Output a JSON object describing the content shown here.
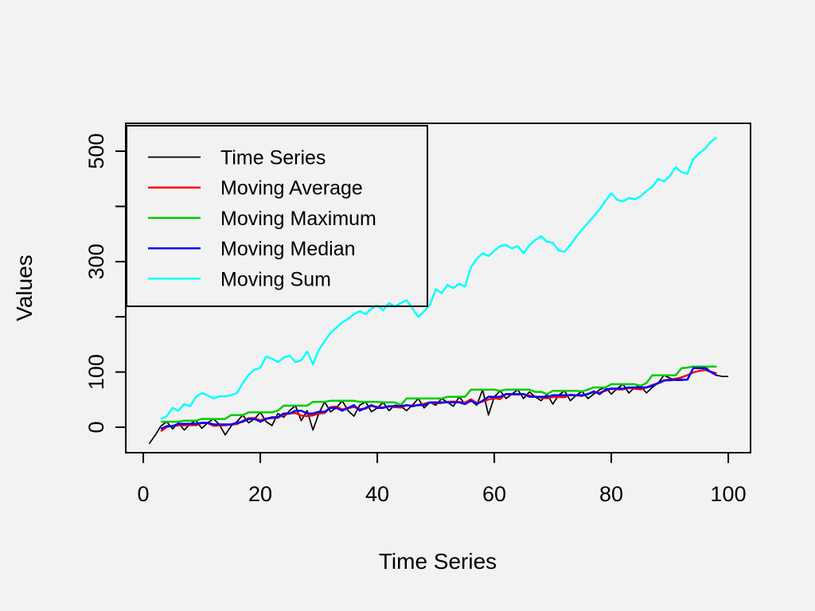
{
  "figure": {
    "background": "#F2F2F2",
    "axis_color": "#000000",
    "xlabel": "Time Series",
    "ylabel": "Values",
    "x_ticks": [
      0,
      20,
      40,
      60,
      80,
      100
    ],
    "x_tick_labels": [
      "0",
      "20",
      "40",
      "60",
      "80",
      "100"
    ],
    "y_ticks": [
      0,
      100,
      200,
      300,
      400,
      500
    ],
    "y_tick_labels": [
      "0",
      "100",
      "",
      "300",
      "",
      "500"
    ],
    "xlim": [
      -3.0,
      103.8
    ],
    "ylim": [
      -46.1,
      550.5
    ],
    "grid": false,
    "legend": {
      "position": "top-left",
      "entries": [
        {
          "label": "Time Series",
          "color": "#000000"
        },
        {
          "label": "Moving Average",
          "color": "#FF0000"
        },
        {
          "label": "Moving Maximum",
          "color": "#00CC00"
        },
        {
          "label": "Moving Median",
          "color": "#0000FF"
        },
        {
          "label": "Moving Sum",
          "color": "#00FFFF"
        }
      ]
    }
  },
  "chart_data": {
    "type": "line",
    "xlabel": "Time Series",
    "ylabel": "Values",
    "xlim": [
      -3.0,
      103.8
    ],
    "ylim": [
      -46.1,
      550.5
    ],
    "x_axis_ticks": [
      0,
      20,
      40,
      60,
      80,
      100
    ],
    "y_axis_ticks_labeled": [
      0,
      100,
      300,
      500
    ],
    "legend_position": "top-left",
    "series": [
      {
        "name": "Time Series",
        "color": "#000000",
        "x_start": 1,
        "values": [
          -30,
          -15,
          2,
          10,
          -3,
          8,
          -5,
          6,
          12,
          -2,
          8,
          15,
          5,
          -14,
          2,
          10,
          22,
          8,
          15,
          27,
          10,
          3,
          25,
          18,
          30,
          39,
          12,
          30,
          -5,
          25,
          46,
          28,
          35,
          48,
          30,
          20,
          40,
          46,
          28,
          35,
          45,
          30,
          40,
          38,
          30,
          40,
          52,
          35,
          45,
          40,
          52,
          45,
          38,
          55,
          42,
          48,
          40,
          68,
          22,
          55,
          66,
          52,
          60,
          68,
          52,
          64,
          55,
          48,
          60,
          42,
          58,
          66,
          48,
          58,
          65,
          52,
          60,
          68,
          72,
          60,
          70,
          78,
          62,
          72,
          75,
          62,
          72,
          80,
          94,
          89,
          85,
          85,
          86,
          107,
          108,
          110,
          100,
          94,
          92,
          92
        ]
      },
      {
        "name": "Moving Average",
        "color": "#FF0000",
        "x_start": 3,
        "values": [
          -7.2,
          0.4,
          2.4,
          3.2,
          3.6,
          3.8,
          3.8,
          7.8,
          7.6,
          2.4,
          3.2,
          3.6,
          5,
          5.6,
          11.4,
          16.4,
          16.4,
          12.6,
          16,
          16.6,
          17.2,
          23,
          24.8,
          25.8,
          21.2,
          20.2,
          21.6,
          24.8,
          25.8,
          36.4,
          37.4,
          32.2,
          34.6,
          36.8,
          32.8,
          33.8,
          38.8,
          36.8,
          35.6,
          37.6,
          36.6,
          35.6,
          40,
          39,
          40.4,
          42.4,
          44.8,
          43.4,
          44,
          46,
          46.4,
          45.6,
          44.6,
          50.6,
          44,
          46.6,
          50.2,
          52.6,
          51,
          60.2,
          59.6,
          59.2,
          59.8,
          57.4,
          55.8,
          53.8,
          52.6,
          54.8,
          54.8,
          54.4,
          59,
          57.8,
          56.6,
          60.6,
          63.4,
          62.4,
          66,
          69.6,
          68.4,
          68.4,
          71.4,
          69.8,
          68.6,
          72.2,
          76.6,
          79.4,
          84,
          86.6,
          87.8,
          90.4,
          94.2,
          99.2,
          102.2,
          103.8,
          100.8,
          97.6
        ]
      },
      {
        "name": "Moving Maximum",
        "color": "#00CC00",
        "x_start": 3,
        "values": [
          10,
          10,
          10,
          10,
          12,
          12,
          12,
          15,
          15,
          15,
          15,
          15,
          22,
          22,
          22,
          27,
          27,
          27,
          27,
          27,
          30,
          39,
          39,
          39,
          39,
          39,
          46,
          46,
          46,
          48,
          48,
          48,
          48,
          48,
          46,
          46,
          46,
          46,
          45,
          45,
          45,
          40,
          52,
          52,
          52,
          52,
          52,
          52,
          52,
          55,
          55,
          55,
          55,
          68,
          68,
          68,
          68,
          68,
          66,
          68,
          68,
          68,
          68,
          68,
          64,
          64,
          60,
          66,
          66,
          66,
          66,
          66,
          65,
          68,
          72,
          72,
          72,
          78,
          78,
          78,
          78,
          78,
          75,
          80,
          94,
          94,
          94,
          94,
          94,
          107,
          108,
          110,
          110,
          110,
          110,
          110
        ]
      },
      {
        "name": "Moving Median",
        "color": "#0000FF",
        "x_start": 3,
        "values": [
          -3,
          2,
          2,
          6,
          6,
          6,
          6,
          8,
          8,
          5,
          5,
          5,
          5,
          8,
          10,
          15,
          15,
          10,
          15,
          18,
          18,
          25,
          25,
          30,
          30,
          25,
          25,
          28,
          28,
          35,
          35,
          30,
          35,
          40,
          30,
          35,
          40,
          35,
          35,
          38,
          38,
          38,
          40,
          38,
          40,
          40,
          45,
          45,
          45,
          45,
          45,
          45,
          42,
          48,
          42,
          48,
          55,
          55,
          55,
          60,
          60,
          60,
          60,
          55,
          55,
          55,
          55,
          58,
          58,
          58,
          58,
          58,
          58,
          60,
          65,
          60,
          68,
          70,
          70,
          70,
          72,
          72,
          72,
          72,
          75,
          80,
          85,
          85,
          86,
          86,
          86,
          107,
          107,
          107,
          100,
          94
        ]
      },
      {
        "name": "Moving Sum",
        "color": "#00FFFF",
        "x_start": 3,
        "values": [
          15,
          20,
          35,
          30,
          42,
          38,
          55,
          62,
          58,
          52,
          56,
          56,
          58,
          62,
          80,
          95,
          104,
          108,
          128,
          124,
          118,
          126,
          130,
          118,
          121,
          137,
          114,
          140,
          156,
          171,
          180,
          190,
          196,
          205,
          210,
          205,
          215,
          220,
          212,
          225,
          218,
          225,
          230,
          215,
          200,
          210,
          222,
          250,
          243,
          258,
          252,
          260,
          255,
          290,
          305,
          315,
          310,
          320,
          328,
          330,
          324,
          328,
          315,
          330,
          339,
          346,
          336,
          334,
          320,
          318,
          330,
          345,
          358,
          370,
          382,
          395,
          410,
          424,
          412,
          409,
          415,
          413,
          418,
          428,
          435,
          450,
          445,
          455,
          471,
          462,
          459,
          486,
          496,
          504,
          517,
          525
        ]
      }
    ]
  }
}
